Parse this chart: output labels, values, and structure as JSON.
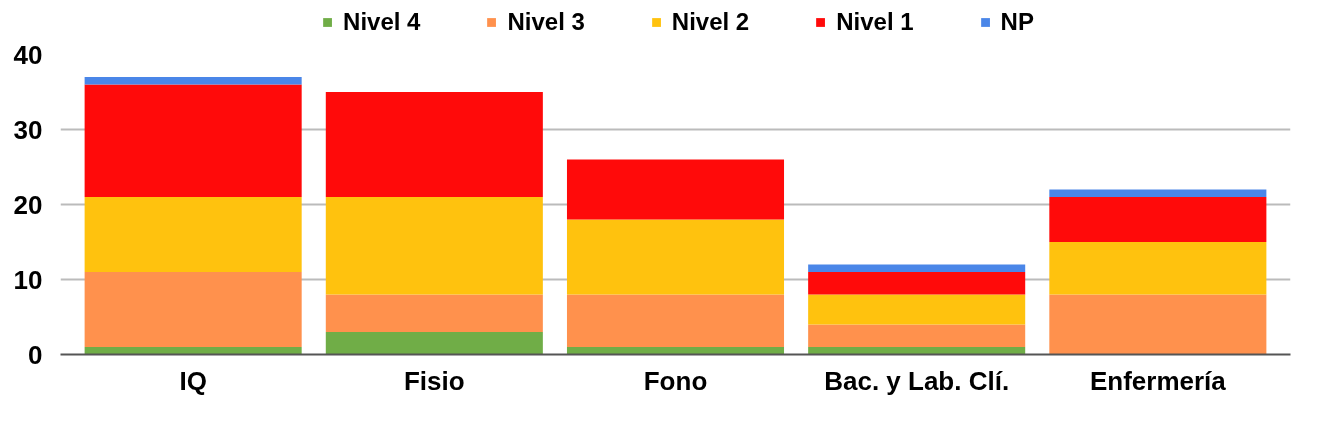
{
  "chart_data": {
    "type": "bar",
    "stacked": true,
    "categories": [
      "IQ",
      "Fisio",
      "Fono",
      "Bac. y Lab. Clí.",
      "Enfermería"
    ],
    "series": [
      {
        "name": "Nivel 4",
        "color": "#70ad47",
        "values": [
          1,
          3,
          1,
          1,
          0
        ]
      },
      {
        "name": "Nivel 3",
        "color": "#ff914d",
        "values": [
          10,
          5,
          7,
          3,
          8
        ]
      },
      {
        "name": "Nivel 2",
        "color": "#ffc20e",
        "values": [
          10,
          13,
          10,
          4,
          7
        ]
      },
      {
        "name": "Nivel 1",
        "color": "#ff0a0a",
        "values": [
          15,
          14,
          8,
          3,
          6
        ]
      },
      {
        "name": "NP",
        "color": "#4a86e8",
        "values": [
          1,
          0,
          0,
          1,
          1
        ]
      }
    ],
    "ylim": [
      0,
      40
    ],
    "yticks": [
      0,
      10,
      20,
      30,
      40
    ],
    "grid": "y",
    "legend": "top"
  }
}
